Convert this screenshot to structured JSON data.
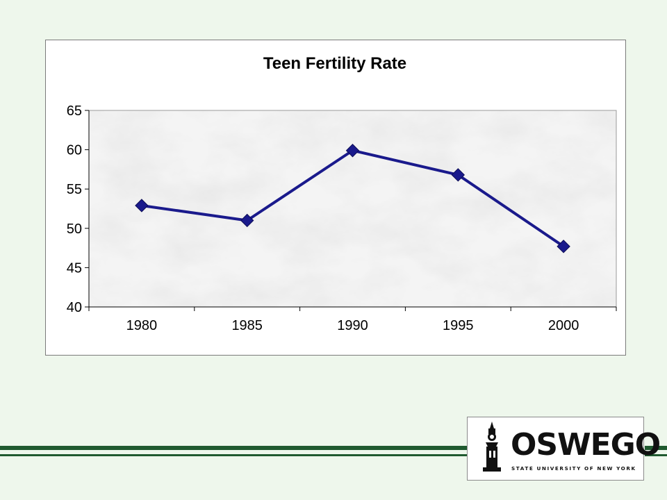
{
  "colors": {
    "background": "#eef7ec",
    "accent_green": "#1f5a2f",
    "series_line": "#1a1a8c"
  },
  "chart_data": {
    "type": "line",
    "title": "Teen Fertility Rate",
    "xlabel": "",
    "ylabel": "",
    "categories": [
      "1980",
      "1985",
      "1990",
      "1995",
      "2000"
    ],
    "series": [
      {
        "values": [
          52.9,
          51.0,
          59.9,
          56.8,
          47.7
        ]
      }
    ],
    "ylim": [
      40,
      65
    ],
    "yticks": [
      40,
      45,
      50,
      55,
      60,
      65
    ],
    "ytick_labels": [
      "40",
      "45",
      "50",
      "55",
      "60",
      "65"
    ],
    "plot_background": "marble texture",
    "marker": "diamond",
    "grid": false,
    "legend": "none"
  },
  "logo": {
    "word": "OSWEGO",
    "subtitle": "STATE UNIVERSITY OF NEW YORK"
  }
}
